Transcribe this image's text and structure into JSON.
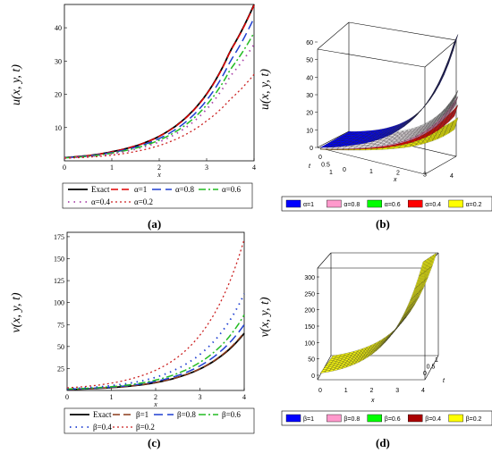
{
  "captions": [
    "(a)",
    "(b)",
    "(c)",
    "(d)"
  ],
  "chart_data": [
    {
      "panel": "a",
      "type": "line",
      "ylabel": "u(x, y, t)",
      "xlabel": "x",
      "xlim": [
        0,
        4
      ],
      "ylim": [
        0,
        47
      ],
      "xticks": [
        "0",
        "1",
        "2",
        "3",
        "4"
      ],
      "yticks": [
        "10",
        "20",
        "30",
        "40"
      ],
      "x": [
        0,
        0.5,
        1,
        1.5,
        2,
        2.5,
        3,
        3.5,
        4
      ],
      "series": [
        {
          "name": "Exact",
          "color": "#000000",
          "values": [
            1,
            1.55,
            2.73,
            4.48,
            7.39,
            12.2,
            20.1,
            33.1,
            47
          ]
        },
        {
          "name": "α=1",
          "color": "#e00000",
          "values": [
            1,
            1.55,
            2.72,
            4.47,
            7.38,
            12.1,
            20.0,
            33.0,
            46.8
          ]
        },
        {
          "name": "α=0.8",
          "color": "#1f3fd1",
          "values": [
            0.95,
            1.45,
            2.5,
            4.1,
            6.7,
            11.0,
            18.2,
            30.0,
            43
          ]
        },
        {
          "name": "α=0.6",
          "color": "#22bb22",
          "values": [
            0.9,
            1.35,
            2.3,
            3.8,
            6.2,
            10.2,
            16.8,
            27.5,
            38.5
          ]
        },
        {
          "name": "α=0.4",
          "color": "#aa44aa",
          "values": [
            0.85,
            1.25,
            2.1,
            3.5,
            5.7,
            9.4,
            15.5,
            25.5,
            35
          ]
        },
        {
          "name": "α=0.2",
          "color": "#cc2222",
          "values": [
            0.8,
            1.1,
            1.7,
            2.8,
            4.6,
            7.5,
            12.0,
            18.5,
            26
          ]
        }
      ]
    },
    {
      "panel": "b",
      "type": "surface3d",
      "zlabel": "u(x, y, t)",
      "xlabel": "x",
      "tlabel": "t",
      "zticks": [
        "0",
        "10",
        "20",
        "30",
        "40",
        "50",
        "60"
      ],
      "xticks": [
        "0",
        "1",
        "2",
        "3",
        "4"
      ],
      "tticks": [
        "0",
        "0.5",
        "1"
      ],
      "legend": [
        {
          "name": "α=1",
          "color": "#0000ff"
        },
        {
          "name": "α=0.8",
          "color": "#ff99cc"
        },
        {
          "name": "α=0.6",
          "color": "#00ff00"
        },
        {
          "name": "α=0.4",
          "color": "#ff0000"
        },
        {
          "name": "α=0.2",
          "color": "#ffff00"
        }
      ]
    },
    {
      "panel": "c",
      "type": "line",
      "ylabel": "v(x, y, t)",
      "xlabel": "x",
      "xlim": [
        0,
        4
      ],
      "ylim": [
        0,
        180
      ],
      "xticks": [
        "0",
        "1",
        "2",
        "3",
        "4"
      ],
      "yticks": [
        "25",
        "50",
        "75",
        "100",
        "125",
        "150",
        "175"
      ],
      "x": [
        0,
        0.5,
        1,
        1.5,
        2,
        2.5,
        3,
        3.5,
        4
      ],
      "series": [
        {
          "name": "Exact",
          "color": "#000000",
          "values": [
            1.2,
            2.0,
            3.3,
            5.4,
            9.0,
            15,
            24.5,
            40,
            65
          ]
        },
        {
          "name": "β=1",
          "color": "#8b3a1a",
          "values": [
            1.2,
            2.0,
            3.3,
            5.5,
            9.1,
            15,
            24.7,
            40.5,
            66
          ]
        },
        {
          "name": "β=0.8",
          "color": "#1f3fd1",
          "values": [
            1.4,
            2.3,
            3.8,
            6.3,
            10.4,
            17,
            28,
            46,
            75
          ]
        },
        {
          "name": "β=0.6",
          "color": "#22bb22",
          "values": [
            1.6,
            2.6,
            4.3,
            7.1,
            11.8,
            19.5,
            32,
            52,
            86
          ]
        },
        {
          "name": "β=0.4",
          "color": "#1f3fd1",
          "values": [
            2.0,
            3.3,
            5.5,
            9.0,
            15,
            25,
            41,
            67,
            110
          ]
        },
        {
          "name": "β=0.2",
          "color": "#cc2222",
          "values": [
            3.0,
            5.0,
            8.3,
            14,
            23,
            38,
            63,
            104,
            172
          ]
        }
      ]
    },
    {
      "panel": "d",
      "type": "surface3d",
      "zlabel": "v(x, y, t)",
      "xlabel": "x",
      "tlabel": "t",
      "zticks": [
        "0",
        "50",
        "100",
        "150",
        "200",
        "250",
        "300"
      ],
      "xticks": [
        "0",
        "1",
        "2",
        "3",
        "4"
      ],
      "tticks": [
        "0",
        "0.5",
        "1"
      ],
      "legend": [
        {
          "name": "β=1",
          "color": "#0000ff"
        },
        {
          "name": "β=0.8",
          "color": "#ff99cc"
        },
        {
          "name": "β=0.6",
          "color": "#00ff00"
        },
        {
          "name": "β=0.4",
          "color": "#aa0000"
        },
        {
          "name": "β=0.2",
          "color": "#ffff00"
        }
      ]
    }
  ]
}
